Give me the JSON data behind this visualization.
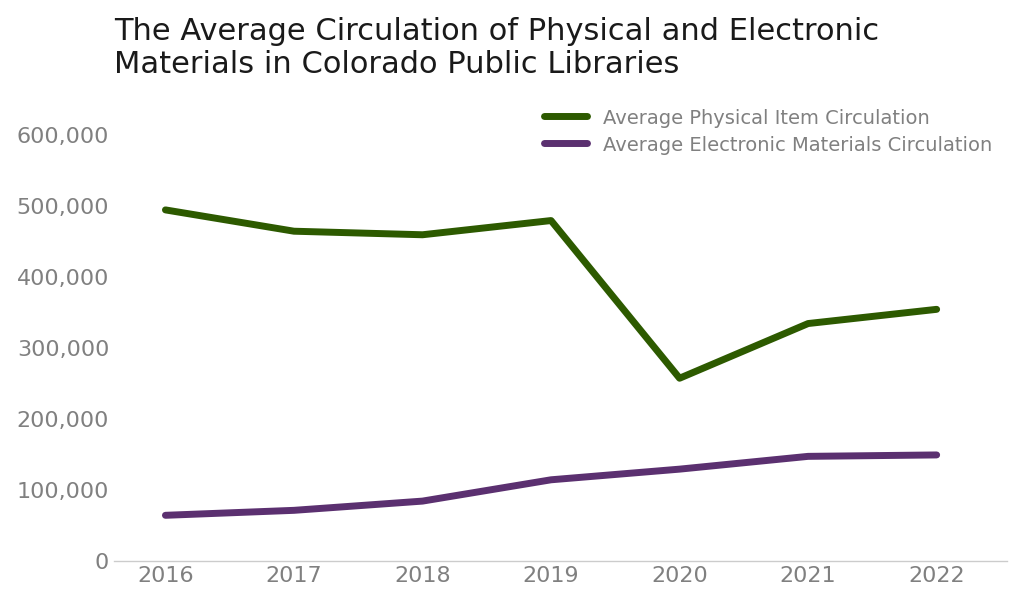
{
  "title_line1": "The Average Circulation of Physical and Electronic",
  "title_line2": "Materials in Colorado Public Libraries",
  "years": [
    2016,
    2017,
    2018,
    2019,
    2020,
    2021,
    2022
  ],
  "physical": [
    495000,
    465000,
    460000,
    480000,
    258000,
    335000,
    355000
  ],
  "electronic": [
    65000,
    72000,
    85000,
    115000,
    130000,
    148000,
    150000
  ],
  "physical_color": "#2d5a00",
  "electronic_color": "#5b3070",
  "physical_label": "Average Physical Item Circulation",
  "electronic_label": "Average Electronic Materials Circulation",
  "ylim": [
    0,
    660000
  ],
  "yticks": [
    0,
    100000,
    200000,
    300000,
    400000,
    500000,
    600000
  ],
  "background_color": "#ffffff",
  "title_fontsize": 22,
  "tick_fontsize": 16,
  "legend_fontsize": 14,
  "line_width": 5.0,
  "tick_color": "#808080",
  "title_color": "#1a1a1a"
}
